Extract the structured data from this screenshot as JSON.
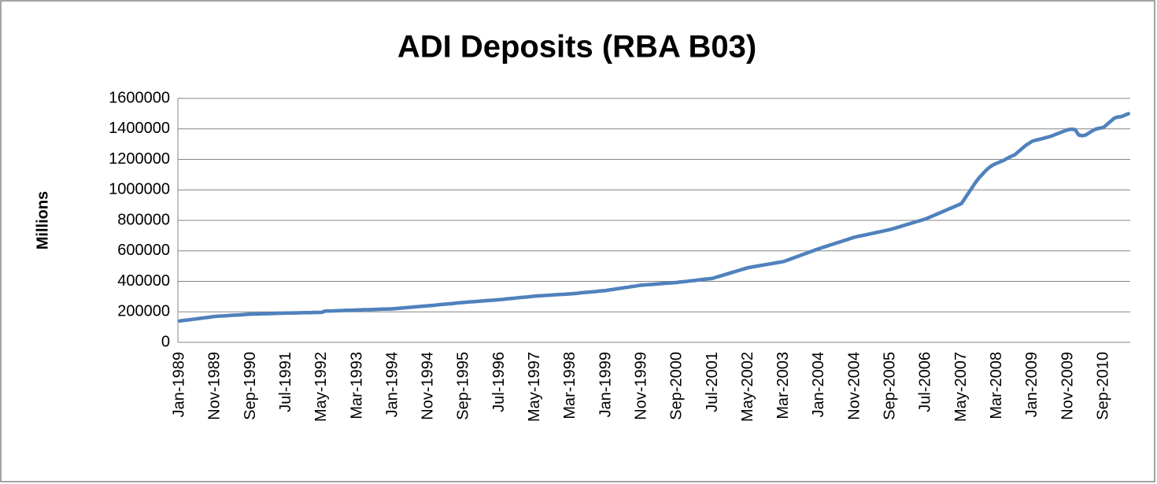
{
  "chart_data": {
    "type": "line",
    "title": "ADI Deposits (RBA B03)",
    "y_label": "Millions",
    "color": "#4f81bd",
    "grid": true,
    "ylim": [
      0,
      1600000
    ],
    "yticks": [
      0,
      200000,
      400000,
      600000,
      800000,
      1000000,
      1200000,
      1400000,
      1600000
    ],
    "categories": [
      "Jan-1989",
      null,
      null,
      null,
      null,
      null,
      null,
      null,
      null,
      null,
      "Nov-1989",
      null,
      null,
      null,
      null,
      null,
      null,
      null,
      null,
      null,
      "Sep-1990",
      null,
      null,
      null,
      null,
      null,
      null,
      null,
      null,
      null,
      "Jul-1991",
      null,
      null,
      null,
      null,
      null,
      null,
      null,
      null,
      null,
      "May-1992",
      null,
      null,
      null,
      null,
      null,
      null,
      null,
      null,
      null,
      "Mar-1993",
      null,
      null,
      null,
      null,
      null,
      null,
      null,
      null,
      null,
      "Jan-1994",
      null,
      null,
      null,
      null,
      null,
      null,
      null,
      null,
      null,
      "Nov-1994",
      null,
      null,
      null,
      null,
      null,
      null,
      null,
      null,
      null,
      "Sep-1995",
      null,
      null,
      null,
      null,
      null,
      null,
      null,
      null,
      null,
      "Jul-1996",
      null,
      null,
      null,
      null,
      null,
      null,
      null,
      null,
      null,
      "May-1997",
      null,
      null,
      null,
      null,
      null,
      null,
      null,
      null,
      null,
      "Mar-1998",
      null,
      null,
      null,
      null,
      null,
      null,
      null,
      null,
      null,
      "Jan-1999",
      null,
      null,
      null,
      null,
      null,
      null,
      null,
      null,
      null,
      "Nov-1999",
      null,
      null,
      null,
      null,
      null,
      null,
      null,
      null,
      null,
      "Sep-2000",
      null,
      null,
      null,
      null,
      null,
      null,
      null,
      null,
      null,
      "Jul-2001",
      null,
      null,
      null,
      null,
      null,
      null,
      null,
      null,
      null,
      "May-2002",
      null,
      null,
      null,
      null,
      null,
      null,
      null,
      null,
      null,
      "Mar-2003",
      null,
      null,
      null,
      null,
      null,
      null,
      null,
      null,
      null,
      "Jan-2004",
      null,
      null,
      null,
      null,
      null,
      null,
      null,
      null,
      null,
      "Nov-2004",
      null,
      null,
      null,
      null,
      null,
      null,
      null,
      null,
      null,
      "Sep-2005",
      null,
      null,
      null,
      null,
      null,
      null,
      null,
      null,
      null,
      "Jul-2006",
      null,
      null,
      null,
      null,
      null,
      null,
      null,
      null,
      null,
      "May-2007",
      null,
      null,
      null,
      null,
      null,
      null,
      null,
      null,
      null,
      "Mar-2008",
      null,
      null,
      null,
      null,
      null,
      null,
      null,
      null,
      null,
      "Jan-2009",
      null,
      null,
      null,
      null,
      null,
      null,
      null,
      null,
      null,
      "Nov-2009",
      null,
      null,
      null,
      null,
      null,
      null,
      null,
      null,
      null,
      "Sep-2010",
      null,
      null,
      null,
      null,
      null,
      null,
      null
    ],
    "values": [
      140000,
      143000,
      146000,
      149000,
      152000,
      155000,
      158000,
      161000,
      164000,
      167000,
      170000,
      172000,
      173000,
      174000,
      176000,
      178000,
      179000,
      180000,
      182000,
      184000,
      185000,
      186000,
      186000,
      187000,
      188000,
      188000,
      189000,
      190000,
      191000,
      191000,
      192000,
      192000,
      193000,
      193000,
      194000,
      194000,
      195000,
      195000,
      196000,
      196000,
      197000,
      205000,
      206000,
      206000,
      207000,
      208000,
      209000,
      210000,
      210000,
      211000,
      212000,
      213000,
      214000,
      214000,
      215000,
      216000,
      217000,
      218000,
      218000,
      219000,
      220000,
      222000,
      224000,
      226000,
      228000,
      230000,
      232000,
      234000,
      236000,
      238000,
      240000,
      242000,
      244000,
      247000,
      249000,
      251000,
      253000,
      255000,
      258000,
      260000,
      262000,
      264000,
      266000,
      267000,
      269000,
      271000,
      273000,
      275000,
      276000,
      278000,
      280000,
      282000,
      285000,
      287000,
      289000,
      292000,
      294000,
      296000,
      298000,
      301000,
      303000,
      305000,
      306000,
      308000,
      309000,
      311000,
      312000,
      314000,
      315000,
      317000,
      318000,
      320000,
      322000,
      325000,
      327000,
      329000,
      331000,
      333000,
      336000,
      338000,
      340000,
      344000,
      347000,
      351000,
      354000,
      358000,
      361000,
      365000,
      368000,
      372000,
      375000,
      377000,
      379000,
      380000,
      382000,
      384000,
      386000,
      388000,
      389000,
      391000,
      393000,
      396000,
      398000,
      401000,
      404000,
      406000,
      409000,
      412000,
      415000,
      417000,
      420000,
      427000,
      434000,
      441000,
      448000,
      455000,
      462000,
      469000,
      476000,
      483000,
      490000,
      494000,
      498000,
      502000,
      506000,
      510000,
      514000,
      518000,
      522000,
      526000,
      530000,
      539000,
      547000,
      556000,
      564000,
      573000,
      581000,
      590000,
      598000,
      607000,
      615000,
      623000,
      630000,
      638000,
      645000,
      653000,
      660000,
      668000,
      675000,
      683000,
      690000,
      695000,
      700000,
      705000,
      710000,
      715000,
      720000,
      725000,
      730000,
      735000,
      740000,
      747000,
      754000,
      761000,
      768000,
      775000,
      782000,
      789000,
      796000,
      803000,
      810000,
      820000,
      830000,
      840000,
      850000,
      860000,
      870000,
      880000,
      890000,
      900000,
      910000,
      945000,
      980000,
      1015000,
      1050000,
      1080000,
      1105000,
      1130000,
      1150000,
      1165000,
      1175000,
      1185000,
      1195000,
      1208000,
      1220000,
      1230000,
      1250000,
      1270000,
      1290000,
      1305000,
      1320000,
      1326000,
      1332000,
      1338000,
      1344000,
      1350000,
      1359000,
      1368000,
      1377000,
      1386000,
      1395000,
      1398000,
      1395000,
      1360000,
      1355000,
      1360000,
      1375000,
      1390000,
      1400000,
      1405000,
      1410000,
      1430000,
      1450000,
      1470000,
      1478000,
      1480000,
      1490000,
      1500000
    ]
  }
}
